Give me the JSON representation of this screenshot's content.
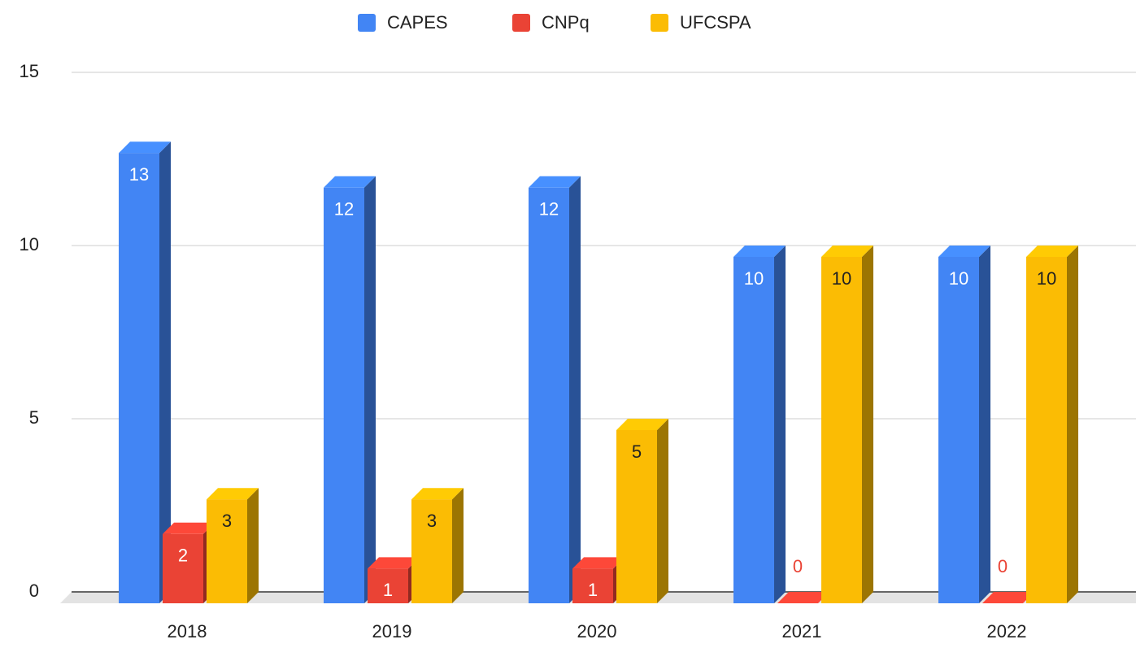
{
  "chart_data": {
    "type": "bar3d",
    "categories": [
      "2018",
      "2019",
      "2020",
      "2021",
      "2022"
    ],
    "series": [
      {
        "name": "CAPES",
        "color": "#4285f4",
        "values": [
          13,
          12,
          12,
          10,
          10
        ]
      },
      {
        "name": "CNPq",
        "color": "#ea4335",
        "values": [
          2,
          1,
          1,
          0,
          0
        ]
      },
      {
        "name": "UFCSPA",
        "color": "#fbbc04",
        "values": [
          3,
          3,
          5,
          10,
          10
        ]
      }
    ],
    "ylim": [
      0,
      15
    ],
    "yticks": [
      0,
      5,
      10,
      15
    ],
    "grid": true,
    "legend": "top"
  }
}
